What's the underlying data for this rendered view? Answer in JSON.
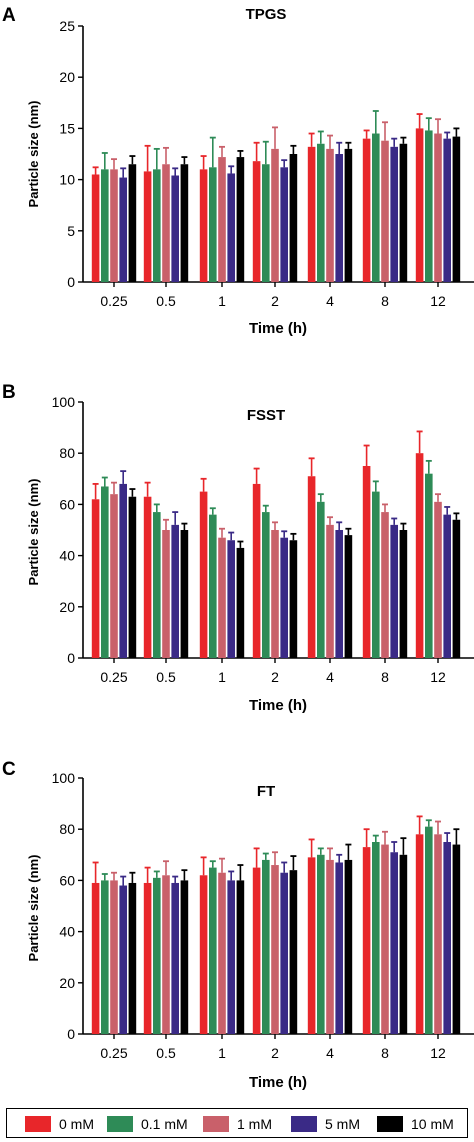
{
  "legend": {
    "items": [
      {
        "label": "0 mM",
        "color": "#e8262a"
      },
      {
        "label": "0.1 mM",
        "color": "#2e8b57"
      },
      {
        "label": "1 mM",
        "color": "#c9606a"
      },
      {
        "label": "5 mM",
        "color": "#3a2a86"
      },
      {
        "label": "10 mM",
        "color": "#000000"
      }
    ]
  },
  "chart_data": [
    {
      "panel": "A",
      "type": "bar",
      "title": "TPGS",
      "xlabel": "Time (h)",
      "ylabel": "Particle size (nm)",
      "ylim": [
        0,
        25
      ],
      "yticks": [
        0,
        5,
        10,
        15,
        20,
        25
      ],
      "categories": [
        "0.25",
        "0.5",
        "1",
        "2",
        "4",
        "8",
        "12"
      ],
      "series": [
        {
          "name": "0 mM",
          "values": [
            10.5,
            10.8,
            11.0,
            11.8,
            13.2,
            14.0,
            15.0
          ],
          "errors": [
            0.7,
            2.5,
            1.3,
            1.8,
            1.3,
            0.8,
            1.4
          ]
        },
        {
          "name": "0.1 mM",
          "values": [
            11.0,
            11.0,
            11.2,
            11.5,
            13.5,
            14.5,
            14.8
          ],
          "errors": [
            1.6,
            2.0,
            2.9,
            2.2,
            1.2,
            2.2,
            1.2
          ]
        },
        {
          "name": "1 mM",
          "values": [
            11.0,
            11.5,
            12.2,
            13.0,
            13.0,
            13.8,
            14.5
          ],
          "errors": [
            1.0,
            1.6,
            1.0,
            2.1,
            1.3,
            1.8,
            1.4
          ]
        },
        {
          "name": "5 mM",
          "values": [
            10.2,
            10.4,
            10.6,
            11.2,
            12.5,
            13.2,
            14.0
          ],
          "errors": [
            0.9,
            0.7,
            0.7,
            0.7,
            1.1,
            0.8,
            0.6
          ]
        },
        {
          "name": "10 mM",
          "values": [
            11.5,
            11.5,
            12.2,
            12.5,
            13.0,
            13.5,
            14.2
          ],
          "errors": [
            0.8,
            0.7,
            0.6,
            0.8,
            0.6,
            0.6,
            0.8
          ]
        }
      ]
    },
    {
      "panel": "B",
      "type": "bar",
      "title": "FSST",
      "xlabel": "Time (h)",
      "ylabel": "Particle size (nm)",
      "ylim": [
        0,
        100
      ],
      "yticks": [
        0,
        20,
        40,
        60,
        80,
        100
      ],
      "categories": [
        "0.25",
        "0.5",
        "1",
        "2",
        "4",
        "8",
        "12"
      ],
      "series": [
        {
          "name": "0 mM",
          "values": [
            62,
            63,
            65,
            68,
            71,
            75,
            80
          ],
          "errors": [
            6,
            5.5,
            5,
            6,
            7,
            8,
            8.5
          ]
        },
        {
          "name": "0.1 mM",
          "values": [
            67,
            57,
            56,
            57,
            61,
            65,
            72
          ],
          "errors": [
            3.5,
            3,
            2.5,
            2.5,
            3,
            4,
            5
          ]
        },
        {
          "name": "1 mM",
          "values": [
            64,
            50,
            47,
            50,
            52,
            57,
            61
          ],
          "errors": [
            4.5,
            4,
            3.5,
            3,
            3,
            3,
            3
          ]
        },
        {
          "name": "5 mM",
          "values": [
            68,
            52,
            46,
            47,
            50,
            52,
            56
          ],
          "errors": [
            5,
            5,
            3,
            2.5,
            3,
            2.5,
            3
          ]
        },
        {
          "name": "10 mM",
          "values": [
            63,
            50,
            43,
            46,
            48,
            50,
            54
          ],
          "errors": [
            3,
            2.5,
            2.5,
            2.5,
            2.5,
            2.5,
            2.5
          ]
        }
      ]
    },
    {
      "panel": "C",
      "type": "bar",
      "title": "FT",
      "xlabel": "Time (h)",
      "ylabel": "Particle size (nm)",
      "ylim": [
        0,
        100
      ],
      "yticks": [
        0,
        20,
        40,
        60,
        80,
        100
      ],
      "categories": [
        "0.25",
        "0.5",
        "1",
        "2",
        "4",
        "8",
        "12"
      ],
      "series": [
        {
          "name": "0 mM",
          "values": [
            59,
            59,
            62,
            65,
            69,
            73,
            78
          ],
          "errors": [
            8,
            6,
            7,
            7.5,
            7,
            7,
            7
          ]
        },
        {
          "name": "0.1 mM",
          "values": [
            60,
            61,
            65,
            68,
            70,
            75,
            81
          ],
          "errors": [
            2.5,
            2.5,
            2.5,
            2.5,
            2.5,
            2.5,
            2.5
          ]
        },
        {
          "name": "1 mM",
          "values": [
            60,
            62,
            63,
            66,
            68,
            74,
            78
          ],
          "errors": [
            3,
            5.5,
            5.5,
            5,
            4.5,
            5,
            5
          ]
        },
        {
          "name": "5 mM",
          "values": [
            58,
            59,
            60,
            63,
            67,
            71,
            75
          ],
          "errors": [
            3.5,
            2.5,
            3.5,
            4,
            3,
            4,
            3.5
          ]
        },
        {
          "name": "10 mM",
          "values": [
            59,
            60,
            60,
            64,
            68,
            70,
            74
          ],
          "errors": [
            4,
            4,
            6,
            5.5,
            6,
            6.5,
            6
          ]
        }
      ]
    }
  ]
}
